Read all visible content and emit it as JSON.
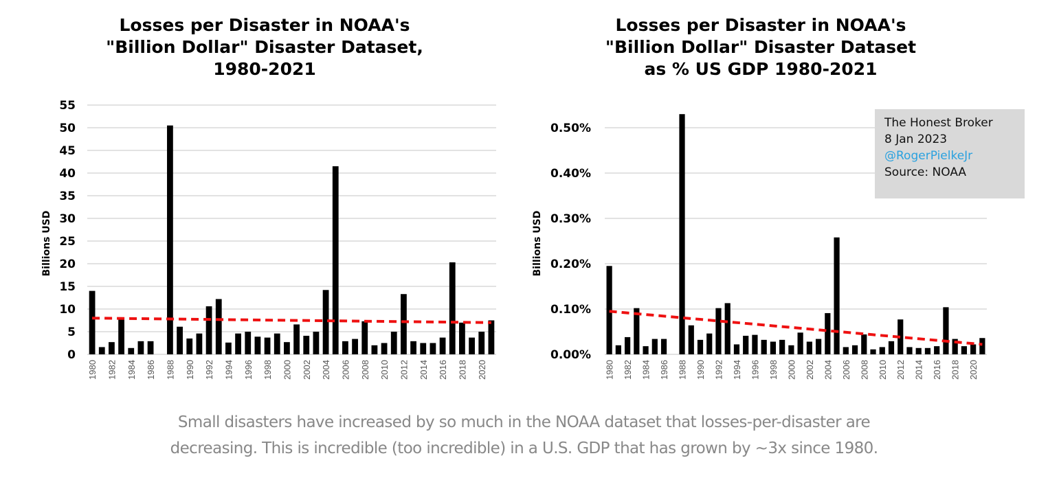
{
  "caption": "Small disasters have increased by so much in the NOAA dataset that losses-per-disaster are decreasing. This is incredible (too incredible) in a U.S. GDP that has grown by ~3x since 1980.",
  "credit": {
    "line1": "The Honest Broker",
    "line2": "8 Jan 2023",
    "handle": "@RogerPielkeJr",
    "source": "Source: NOAA",
    "handle_color": "#2aa1df",
    "box_color": "#d9d9d9"
  },
  "colors": {
    "bar": "#000000",
    "trend": "#ee1111",
    "grid": "#d9d9d9"
  },
  "chart_data": [
    {
      "type": "bar",
      "title_lines": [
        "Losses per Disaster in NOAA's",
        "\"Billion Dollar\" Disaster Dataset,",
        "1980-2021"
      ],
      "xlabel": "",
      "ylabel": "Billions USD",
      "ylim": [
        0,
        55
      ],
      "yticks": [
        0,
        5,
        10,
        15,
        20,
        25,
        30,
        35,
        40,
        45,
        50,
        55
      ],
      "ytick_labels": [
        "0",
        "5",
        "10",
        "15",
        "20",
        "25",
        "30",
        "35",
        "40",
        "45",
        "50",
        "55"
      ],
      "grid": true,
      "categories": [
        1980,
        1981,
        1982,
        1983,
        1984,
        1985,
        1986,
        1987,
        1988,
        1989,
        1990,
        1991,
        1992,
        1993,
        1994,
        1995,
        1996,
        1997,
        1998,
        1999,
        2000,
        2001,
        2002,
        2003,
        2004,
        2005,
        2006,
        2007,
        2008,
        2009,
        2010,
        2011,
        2012,
        2013,
        2014,
        2015,
        2016,
        2017,
        2018,
        2019,
        2020,
        2021
      ],
      "xtick_labels": [
        "1980",
        "1982",
        "1984",
        "1986",
        "1988",
        "1990",
        "1992",
        "1994",
        "1996",
        "1998",
        "2000",
        "2002",
        "2004",
        "2006",
        "2008",
        "2010",
        "2012",
        "2014",
        "2016",
        "2018",
        "2020"
      ],
      "values": [
        14.0,
        1.6,
        2.7,
        7.8,
        1.4,
        2.9,
        2.9,
        0,
        50.5,
        6.1,
        3.5,
        4.6,
        10.6,
        12.2,
        2.6,
        4.6,
        5.0,
        3.9,
        3.7,
        4.6,
        2.7,
        6.6,
        4.1,
        5.0,
        14.2,
        41.5,
        2.9,
        3.4,
        7.3,
        2.0,
        2.5,
        5.0,
        13.3,
        2.9,
        2.5,
        2.5,
        3.7,
        20.3,
        7.0,
        3.7,
        5.0,
        7.5
      ],
      "trendline": {
        "style": "dashed",
        "start": [
          1980,
          8.0
        ],
        "end": [
          2021,
          7.0
        ]
      }
    },
    {
      "type": "bar",
      "title_lines": [
        "Losses per Disaster in NOAA's",
        "\"Billion Dollar\" Disaster Dataset",
        "as % US GDP 1980-2021"
      ],
      "xlabel": "",
      "ylabel": "Billions USD",
      "ylim": [
        0,
        0.55
      ],
      "yticks": [
        0,
        0.1,
        0.2,
        0.3,
        0.4,
        0.5
      ],
      "ytick_labels": [
        "0.00%",
        "0.10%",
        "0.20%",
        "0.30%",
        "0.40%",
        "0.50%"
      ],
      "grid": true,
      "categories": [
        1980,
        1981,
        1982,
        1983,
        1984,
        1985,
        1986,
        1987,
        1988,
        1989,
        1990,
        1991,
        1992,
        1993,
        1994,
        1995,
        1996,
        1997,
        1998,
        1999,
        2000,
        2001,
        2002,
        2003,
        2004,
        2005,
        2006,
        2007,
        2008,
        2009,
        2010,
        2011,
        2012,
        2013,
        2014,
        2015,
        2016,
        2017,
        2018,
        2019,
        2020,
        2021
      ],
      "xtick_labels": [
        "1980",
        "1982",
        "1984",
        "1986",
        "1988",
        "1990",
        "1992",
        "1994",
        "1996",
        "1998",
        "2000",
        "2002",
        "2004",
        "2006",
        "2008",
        "2010",
        "2012",
        "2014",
        "2016",
        "2018",
        "2020"
      ],
      "values": [
        0.195,
        0.02,
        0.038,
        0.102,
        0.018,
        0.034,
        0.034,
        0,
        0.53,
        0.064,
        0.032,
        0.046,
        0.102,
        0.113,
        0.022,
        0.041,
        0.043,
        0.032,
        0.028,
        0.032,
        0.02,
        0.048,
        0.028,
        0.034,
        0.091,
        0.258,
        0.016,
        0.02,
        0.044,
        0.011,
        0.016,
        0.029,
        0.077,
        0.016,
        0.014,
        0.014,
        0.018,
        0.104,
        0.034,
        0.018,
        0.022,
        0.036
      ],
      "trendline": {
        "style": "dashed",
        "start": [
          1980,
          0.095
        ],
        "end": [
          2021,
          0.022
        ]
      }
    }
  ]
}
